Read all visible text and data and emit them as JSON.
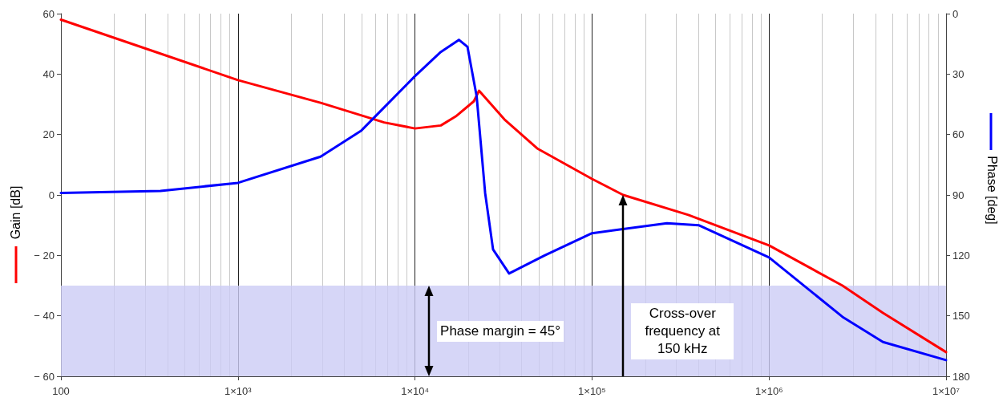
{
  "chart_data": {
    "type": "line",
    "ylabel": "Gain [dB]",
    "y2label": "Phase [deg]",
    "xlim": [
      100,
      10000000
    ],
    "xticks": [
      100,
      {
        "value": 1000,
        "label": "1×10³"
      },
      {
        "value": 10000,
        "label": "1×10⁴"
      },
      {
        "value": 100000,
        "label": "1×10⁵"
      },
      {
        "value": 1000000,
        "label": "1×10⁶"
      },
      {
        "value": 10000000,
        "label": "1×10⁷"
      }
    ],
    "ylim": [
      -60,
      60
    ],
    "yticks": [
      {
        "value": -60,
        "label": "− 60"
      },
      {
        "value": -40,
        "label": "− 40"
      },
      {
        "value": -20,
        "label": "− 20"
      },
      0,
      20,
      40,
      60
    ],
    "y2lim": [
      180,
      0
    ],
    "y2ticks": [
      0,
      30,
      60,
      90,
      120,
      150,
      180
    ],
    "log": "x",
    "grid": "x",
    "series": [
      {
        "color": "#ff0000",
        "x": [
          100,
          1000,
          2930,
          6700,
          10000,
          14000,
          17000,
          21500,
          23000,
          26000,
          32000,
          49000,
          100000,
          150000,
          350000,
          1000000,
          2600000,
          4400000,
          10000000
        ],
        "values": [
          58,
          38,
          30.5,
          24,
          22,
          23,
          26,
          31,
          34.5,
          31,
          25,
          15.4,
          5.3,
          0,
          -6.6,
          -16.7,
          -30,
          -39,
          -52
        ]
      },
      {
        "color": "#0000ff",
        "axis": "y2",
        "x": [
          100,
          365,
          1000,
          2930,
          4980,
          10000,
          14000,
          17700,
          19800,
          22300,
          24900,
          27600,
          34000,
          54000,
          100000,
          265000,
          400000,
          1000000,
          2600000,
          4400000,
          10000000
        ],
        "values": [
          89,
          88,
          84,
          71,
          58,
          31,
          19,
          13,
          16.5,
          41,
          89,
          117,
          129,
          120,
          109,
          104,
          105,
          121,
          150.5,
          163,
          172
        ]
      }
    ],
    "bands": [
      {
        "axis": "y",
        "from": -60,
        "to": -30,
        "color": "#ccccf5"
      }
    ],
    "ref_lines": [
      {
        "axis": "x",
        "value": 150000,
        "label": "Cross-over frequency at 150 kHz",
        "color": "#000000"
      }
    ],
    "annotations": [
      {
        "text": "Phase margin = 45°",
        "x": 12000,
        "y": -30
      }
    ]
  }
}
